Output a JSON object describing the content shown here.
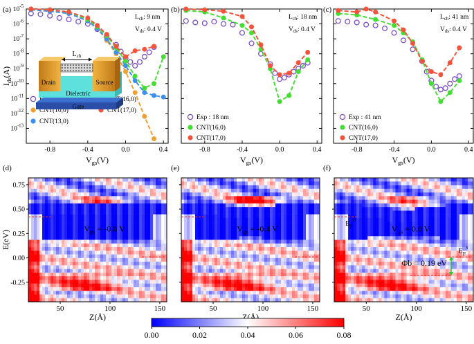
{
  "figure": {
    "panel_labels": [
      "(a)",
      "(b)",
      "(c)",
      "(d)",
      "(e)",
      "(f)"
    ],
    "colorbar": {
      "ticks": [
        "0.00",
        "0.02",
        "0.04",
        "0.06",
        "0.08"
      ],
      "range": [
        0,
        0.08
      ],
      "colors": [
        "#0000ff",
        "#ffffff",
        "#ff0000"
      ]
    },
    "device": {
      "lch": "L",
      "lch_sub": "ch",
      "drain": "Drain",
      "source": "Source",
      "dielectric": "Dielectric",
      "gate": "Gate"
    }
  },
  "chart_data": [
    {
      "type": "scatter",
      "panel": "(a)",
      "annotation_lch": {
        "main": "L",
        "sub": "ch",
        "value": ":  9 nm"
      },
      "annotation_vds": {
        "main": "V",
        "sub": "ds",
        "value": ":  0.4 V"
      },
      "ylabel": {
        "main": "I",
        "sub": "ds",
        "unit": "(A)"
      },
      "xlabel": {
        "main": "V",
        "sub": "gs",
        "unit": "(V)"
      },
      "xlim": [
        -1.05,
        0.45
      ],
      "ylim_exp": [
        -14,
        -5
      ],
      "log_y": true,
      "xticks": [
        -0.8,
        -0.4,
        0.0,
        0.4
      ],
      "xtick_labels": [
        "-0.8",
        "-0.4",
        "0.0",
        "0.4"
      ],
      "yticks_exp": [
        -5,
        -6,
        -7,
        -8,
        -9,
        -10,
        -11,
        -12,
        -13
      ],
      "ytick_labels": [
        "-5",
        "-6",
        "-7",
        "-8",
        "-9",
        "-10",
        "-11",
        "-12",
        "-13"
      ],
      "legend": [
        {
          "label": "Exp : 9 nm",
          "style": "open-circle",
          "color": "#7a4fc9"
        },
        {
          "label": "CNT(16,0)",
          "style": "filled",
          "color": "#44dd33"
        },
        {
          "label": "CNT(10,0)",
          "style": "filled",
          "color": "#f0a030"
        },
        {
          "label": "CNT(17,0)",
          "style": "filled",
          "color": "#f5533b"
        },
        {
          "label": "CNT(13,0)",
          "style": "filled",
          "color": "#3d8ff0"
        }
      ],
      "series": [
        {
          "name": "Exp : 9 nm",
          "color": "#7a4fc9",
          "style": "open",
          "x": [
            -1.0,
            -0.9,
            -0.8,
            -0.7,
            -0.6,
            -0.5,
            -0.4,
            -0.3,
            -0.2,
            -0.1,
            -0.05,
            0.0,
            0.05,
            0.1,
            0.15,
            0.2,
            0.25,
            0.3
          ],
          "log10y": [
            -5.3,
            -5.35,
            -5.45,
            -5.6,
            -5.7,
            -5.85,
            -6.0,
            -6.35,
            -6.8,
            -7.4,
            -7.85,
            -8.3,
            -8.55,
            -8.8,
            -8.55,
            -8.2,
            -7.9,
            -7.55
          ]
        },
        {
          "name": "CNT(10,0)",
          "color": "#f0a030",
          "style": "filled",
          "x": [
            -1.0,
            -0.8,
            -0.6,
            -0.4,
            -0.3,
            -0.2,
            -0.1,
            0.0,
            0.1,
            0.2,
            0.3
          ],
          "log10y": [
            -5.0,
            -5.1,
            -5.3,
            -5.8,
            -6.3,
            -7.1,
            -8.0,
            -9.2,
            -10.6,
            -12.2,
            -13.7
          ]
        },
        {
          "name": "CNT(13,0)",
          "color": "#3d8ff0",
          "style": "filled",
          "x": [
            -1.0,
            -0.8,
            -0.6,
            -0.4,
            -0.3,
            -0.2,
            -0.1,
            0.0,
            0.1,
            0.2,
            0.3,
            0.4
          ],
          "log10y": [
            -5.05,
            -5.15,
            -5.3,
            -5.8,
            -6.3,
            -7.0,
            -7.9,
            -8.8,
            -9.8,
            -10.6,
            -10.8,
            -10.9
          ]
        },
        {
          "name": "CNT(16,0)",
          "color": "#44dd33",
          "style": "filled",
          "x": [
            -1.0,
            -0.8,
            -0.6,
            -0.4,
            -0.3,
            -0.2,
            -0.1,
            0.0,
            0.1,
            0.2,
            0.3,
            0.4
          ],
          "log10y": [
            -5.0,
            -5.05,
            -5.2,
            -5.7,
            -6.2,
            -6.8,
            -7.6,
            -8.5,
            -9.5,
            -10.3,
            -10.0,
            -8.2
          ]
        },
        {
          "name": "CNT(17,0)",
          "color": "#f5533b",
          "style": "filled",
          "x": [
            -1.0,
            -0.8,
            -0.6,
            -0.4,
            -0.3,
            -0.2,
            -0.1,
            0.0,
            0.1,
            0.2,
            0.3
          ],
          "log10y": [
            -5.0,
            -5.05,
            -5.2,
            -5.6,
            -6.1,
            -6.7,
            -7.5,
            -8.2,
            -7.8,
            -7.7,
            -7.5
          ]
        }
      ]
    },
    {
      "type": "scatter",
      "panel": "(b)",
      "annotation_lch": {
        "main": "L",
        "sub": "ch",
        "value": ":  18 nm"
      },
      "annotation_vds": {
        "main": "V",
        "sub": "ds",
        "value": ":  0.4 V"
      },
      "xlabel": {
        "main": "V",
        "sub": "gs",
        "unit": "(V)"
      },
      "xlim": [
        -1.05,
        0.45
      ],
      "ylim_exp": [
        -14,
        -5
      ],
      "log_y": true,
      "xticks": [
        -0.8,
        -0.4,
        0.0,
        0.4
      ],
      "xtick_labels": [
        "-0.8",
        "-0.4",
        "0.0",
        "0.4"
      ],
      "yticks_exp": [
        -5,
        -6,
        -7,
        -8,
        -9,
        -10,
        -11,
        -12,
        -13
      ],
      "legend": [
        {
          "label": "Exp : 18 nm",
          "style": "open-circle",
          "color": "#7a4fc9"
        },
        {
          "label": "CNT(16,0)",
          "style": "filled",
          "color": "#44dd33"
        },
        {
          "label": "CNT(17,0)",
          "style": "filled",
          "color": "#f5533b"
        }
      ],
      "series": [
        {
          "name": "Exp : 18 nm",
          "color": "#7a4fc9",
          "style": "open",
          "x": [
            -1.0,
            -0.9,
            -0.8,
            -0.7,
            -0.6,
            -0.5,
            -0.4,
            -0.3,
            -0.2,
            -0.1,
            -0.05,
            0.0,
            0.05,
            0.1,
            0.15,
            0.2,
            0.25,
            0.3
          ],
          "log10y": [
            -5.8,
            -5.9,
            -5.95,
            -5.85,
            -6.0,
            -6.05,
            -6.6,
            -7.3,
            -8.0,
            -8.7,
            -9.3,
            -9.7,
            -9.6,
            -9.4,
            -9.2,
            -9.0,
            -8.8,
            -8.6
          ]
        },
        {
          "name": "CNT(16,0)",
          "color": "#44dd33",
          "style": "filled",
          "x": [
            -1.0,
            -0.8,
            -0.6,
            -0.4,
            -0.3,
            -0.2,
            -0.1,
            0.0,
            0.1,
            0.2,
            0.3
          ],
          "log10y": [
            -5.1,
            -5.2,
            -5.6,
            -6.1,
            -6.6,
            -7.7,
            -9.0,
            -11.2,
            -10.8,
            -9.2,
            -8.4
          ]
        },
        {
          "name": "CNT(17,0)",
          "color": "#f5533b",
          "style": "filled",
          "x": [
            -1.0,
            -0.8,
            -0.6,
            -0.4,
            -0.3,
            -0.2,
            -0.1,
            0.0,
            0.1,
            0.2,
            0.3
          ],
          "log10y": [
            -5.0,
            -5.05,
            -5.15,
            -5.5,
            -6.2,
            -7.4,
            -8.8,
            -9.4,
            -9.3,
            -8.6,
            -7.9
          ]
        }
      ]
    },
    {
      "type": "scatter",
      "panel": "(c)",
      "annotation_lch": {
        "main": "L",
        "sub": "ch",
        "value": ":  41 nm"
      },
      "annotation_vds": {
        "main": "V",
        "sub": "ds",
        "value": ":  0.4 V"
      },
      "xlabel": {
        "main": "V",
        "sub": "gs",
        "unit": "(V)"
      },
      "xlim": [
        -1.05,
        0.45
      ],
      "ylim_exp": [
        -14,
        -5
      ],
      "log_y": true,
      "xticks": [
        -0.8,
        -0.4,
        0.0,
        0.4
      ],
      "xtick_labels": [
        "-0.8",
        "-0.4",
        "0.0",
        "0.4"
      ],
      "yticks_exp": [
        -5,
        -6,
        -7,
        -8,
        -9,
        -10,
        -11,
        -12,
        -13
      ],
      "legend": [
        {
          "label": "Exp : 41 nm",
          "style": "open-circle",
          "color": "#7a4fc9"
        },
        {
          "label": "CNT(16,0)",
          "style": "filled",
          "color": "#44dd33"
        },
        {
          "label": "CNT(17,0)",
          "style": "filled",
          "color": "#f5533b"
        }
      ],
      "series": [
        {
          "name": "Exp : 41 nm",
          "color": "#7a4fc9",
          "style": "open",
          "x": [
            -1.0,
            -0.9,
            -0.8,
            -0.7,
            -0.6,
            -0.5,
            -0.4,
            -0.3,
            -0.2,
            -0.1,
            -0.05,
            0.0,
            0.05,
            0.1,
            0.15,
            0.2,
            0.25,
            0.3
          ],
          "log10y": [
            -5.8,
            -5.85,
            -5.9,
            -6.05,
            -6.1,
            -6.3,
            -6.6,
            -7.1,
            -7.7,
            -8.5,
            -9.2,
            -9.8,
            -10.2,
            -10.4,
            -10.3,
            -10.0,
            -9.7,
            -9.5
          ]
        },
        {
          "name": "CNT(16,0)",
          "color": "#44dd33",
          "style": "filled",
          "x": [
            -1.0,
            -0.8,
            -0.6,
            -0.4,
            -0.3,
            -0.2,
            -0.1,
            0.0,
            0.1,
            0.2,
            0.3
          ],
          "log10y": [
            -5.3,
            -5.4,
            -5.7,
            -6.1,
            -6.6,
            -7.2,
            -8.4,
            -10.0,
            -11.2,
            -10.6,
            -9.8
          ]
        },
        {
          "name": "CNT(17,0)",
          "color": "#f5533b",
          "style": "filled",
          "x": [
            -1.0,
            -0.8,
            -0.7,
            -0.6,
            -0.4,
            -0.3,
            -0.2,
            -0.1,
            0.0,
            0.1,
            0.2,
            0.3
          ],
          "log10y": [
            -5.1,
            -5.2,
            -5.0,
            -5.2,
            -5.8,
            -6.4,
            -7.3,
            -8.5,
            -9.2,
            -9.4,
            -8.6,
            -7.6
          ]
        }
      ]
    },
    {
      "type": "heatmap",
      "panel": "(d)",
      "ylabel": "E(eV)",
      "xlabel": "Z(Å)",
      "xlim": [
        18,
        157
      ],
      "ylim": [
        -0.45,
        0.82
      ],
      "xticks": [
        50,
        100,
        150
      ],
      "xtick_labels": [
        "50",
        "100",
        "150"
      ],
      "yticks": [
        0.75,
        0.5,
        0.25,
        0.0,
        -0.25
      ],
      "ytick_labels": [
        "0.75",
        "0.50",
        "0.25",
        "0.00",
        "-0.25"
      ],
      "annotation": {
        "main": "V",
        "sub": "gs",
        "value": " = -0.8 V"
      },
      "ef_left": 0.42,
      "ef_right": 0.01,
      "phi_b": null
    },
    {
      "type": "heatmap",
      "panel": "(e)",
      "xlabel": "Z(Å)",
      "xlim": [
        18,
        157
      ],
      "ylim": [
        -0.45,
        0.82
      ],
      "xticks": [
        50,
        100,
        150
      ],
      "xtick_labels": [
        "50",
        "100",
        "150"
      ],
      "yticks": [
        0.75,
        0.5,
        0.25,
        0.0,
        -0.25
      ],
      "annotation": {
        "main": "V",
        "sub": "gs",
        "value": " = -0.4 V"
      },
      "ef_left": 0.42,
      "ef_right": 0.01,
      "phi_b": null
    },
    {
      "type": "heatmap",
      "panel": "(f)",
      "xlabel": "Z(Å)",
      "xlim": [
        18,
        157
      ],
      "ylim": [
        -0.45,
        0.82
      ],
      "xticks": [
        50,
        100,
        150
      ],
      "xtick_labels": [
        "50",
        "100",
        "150"
      ],
      "yticks": [
        0.75,
        0.5,
        0.25,
        0.0,
        -0.25
      ],
      "annotation": {
        "main": "V",
        "sub": "gs",
        "value": " = 0.0 V"
      },
      "ef_left": 0.42,
      "ef_right": 0.01,
      "ef_left_label": {
        "main": "E",
        "sub": "F",
        "sup": "d"
      },
      "ef_right_label": {
        "main": "E",
        "sub": "F",
        "sup": "s"
      },
      "phi_b": {
        "label": "Φb = 0.19 eV",
        "top": 0.01,
        "bottom": -0.18
      }
    }
  ]
}
